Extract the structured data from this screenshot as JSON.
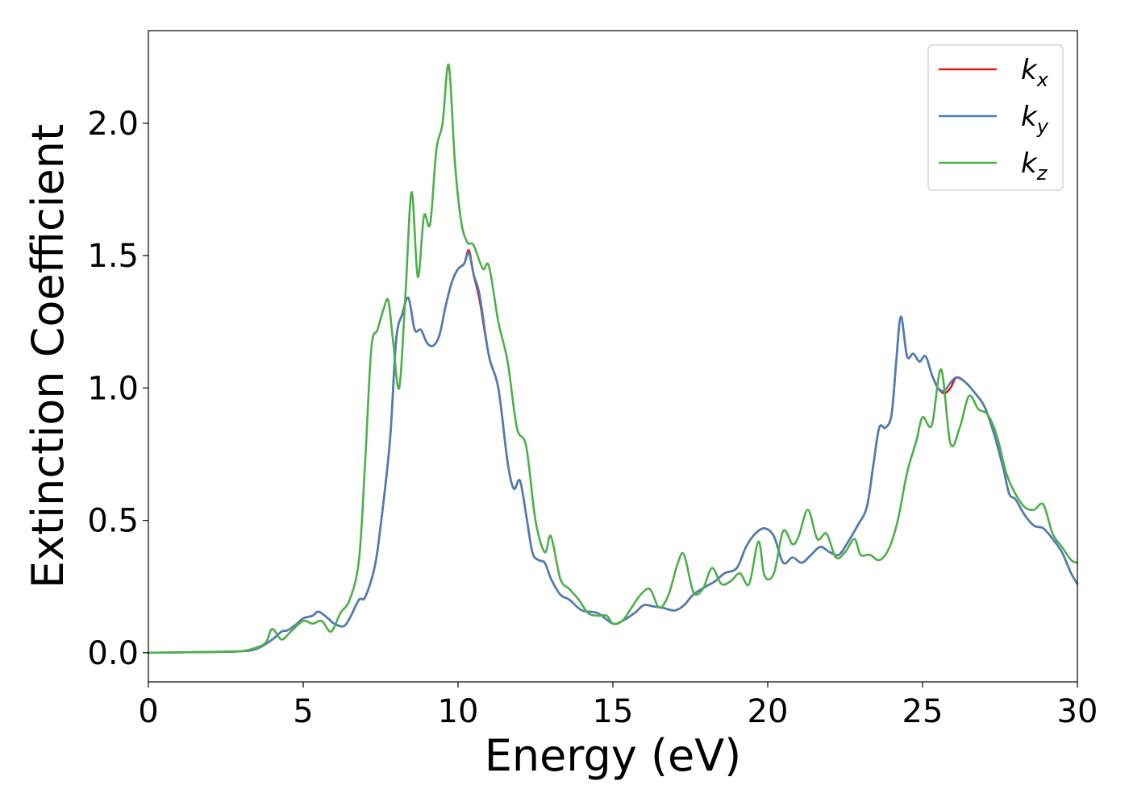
{
  "chart_data": {
    "type": "line",
    "xlabel": "Energy (eV)",
    "ylabel": "Extinction Coefficient",
    "xlim": [
      0,
      30
    ],
    "ylim": [
      -0.11,
      2.35
    ],
    "x_ticks": [
      0,
      5,
      10,
      15,
      20,
      25,
      30
    ],
    "x_tick_labels": [
      "0",
      "5",
      "10",
      "15",
      "20",
      "25",
      "30"
    ],
    "y_ticks": [
      0.0,
      0.5,
      1.0,
      1.5,
      2.0
    ],
    "y_tick_labels": [
      "0.0",
      "0.5",
      "1.0",
      "1.5",
      "2.0"
    ],
    "grid": false,
    "legend_position": "top-right",
    "series": [
      {
        "name": "k_x",
        "legend_base": "k",
        "legend_sub": "x",
        "color": "#e41a1c",
        "x": [
          0,
          2,
          3,
          3.5,
          4,
          4.3,
          4.5,
          4.8,
          5,
          5.3,
          5.5,
          5.8,
          6,
          6.3,
          6.5,
          6.8,
          7,
          7.3,
          7.5,
          7.8,
          8,
          8.2,
          8.4,
          8.6,
          8.8,
          9,
          9.2,
          9.4,
          9.6,
          9.8,
          10,
          10.2,
          10.35,
          10.5,
          10.7,
          11,
          11.3,
          11.6,
          11.8,
          12,
          12.2,
          12.4,
          12.6,
          12.8,
          13,
          13.3,
          13.6,
          14,
          14.5,
          15,
          15.3,
          15.7,
          16,
          16.3,
          16.6,
          17,
          17.3,
          17.6,
          18,
          18.3,
          18.6,
          19,
          19.3,
          19.6,
          19.9,
          20.2,
          20.5,
          20.8,
          21.1,
          21.4,
          21.7,
          22,
          22.3,
          22.6,
          22.9,
          23.2,
          23.4,
          23.6,
          23.8,
          24,
          24.15,
          24.3,
          24.5,
          24.7,
          24.9,
          25.1,
          25.3,
          25.5,
          25.7,
          25.9,
          26.1,
          26.4,
          26.7,
          27,
          27.3,
          27.6,
          27.8,
          28,
          28.3,
          28.6,
          28.9,
          29.2,
          29.5,
          29.8,
          30
        ],
        "y": [
          0,
          0.003,
          0.006,
          0.015,
          0.05,
          0.08,
          0.085,
          0.11,
          0.13,
          0.14,
          0.155,
          0.13,
          0.11,
          0.1,
          0.13,
          0.2,
          0.21,
          0.32,
          0.48,
          0.8,
          1.18,
          1.28,
          1.34,
          1.22,
          1.22,
          1.17,
          1.16,
          1.2,
          1.31,
          1.4,
          1.45,
          1.47,
          1.52,
          1.43,
          1.33,
          1.12,
          1.0,
          0.72,
          0.62,
          0.65,
          0.52,
          0.38,
          0.35,
          0.34,
          0.28,
          0.22,
          0.2,
          0.16,
          0.15,
          0.11,
          0.12,
          0.15,
          0.18,
          0.175,
          0.17,
          0.16,
          0.18,
          0.22,
          0.25,
          0.27,
          0.3,
          0.32,
          0.4,
          0.45,
          0.47,
          0.44,
          0.34,
          0.36,
          0.34,
          0.37,
          0.4,
          0.38,
          0.37,
          0.42,
          0.48,
          0.55,
          0.7,
          0.85,
          0.85,
          0.9,
          1.1,
          1.27,
          1.12,
          1.13,
          1.1,
          1.12,
          1.05,
          1.0,
          0.98,
          1.0,
          1.04,
          1.02,
          0.98,
          0.93,
          0.83,
          0.7,
          0.6,
          0.58,
          0.52,
          0.48,
          0.47,
          0.43,
          0.38,
          0.3,
          0.26
        ]
      },
      {
        "name": "k_y",
        "legend_base": "k",
        "legend_sub": "y",
        "color": "#4a7fb5",
        "x": [
          0,
          2,
          3,
          3.5,
          4,
          4.3,
          4.5,
          4.8,
          5,
          5.3,
          5.5,
          5.8,
          6,
          6.3,
          6.5,
          6.8,
          7,
          7.3,
          7.5,
          7.8,
          8,
          8.2,
          8.4,
          8.6,
          8.8,
          9,
          9.2,
          9.4,
          9.6,
          9.8,
          10,
          10.2,
          10.35,
          10.5,
          10.7,
          11,
          11.3,
          11.6,
          11.8,
          12,
          12.2,
          12.4,
          12.6,
          12.8,
          13,
          13.3,
          13.6,
          14,
          14.5,
          15,
          15.3,
          15.7,
          16,
          16.3,
          16.6,
          17,
          17.3,
          17.6,
          18,
          18.3,
          18.6,
          19,
          19.3,
          19.6,
          19.9,
          20.2,
          20.5,
          20.8,
          21.1,
          21.4,
          21.7,
          22,
          22.3,
          22.6,
          22.9,
          23.2,
          23.4,
          23.6,
          23.8,
          24,
          24.15,
          24.3,
          24.5,
          24.7,
          24.9,
          25.1,
          25.3,
          25.5,
          25.7,
          25.9,
          26.1,
          26.4,
          26.7,
          27,
          27.3,
          27.6,
          27.8,
          28,
          28.3,
          28.6,
          28.9,
          29.2,
          29.5,
          29.8,
          30
        ],
        "y": [
          0,
          0.003,
          0.006,
          0.015,
          0.05,
          0.08,
          0.085,
          0.11,
          0.13,
          0.14,
          0.155,
          0.13,
          0.11,
          0.1,
          0.13,
          0.2,
          0.21,
          0.32,
          0.48,
          0.8,
          1.18,
          1.28,
          1.34,
          1.22,
          1.22,
          1.17,
          1.16,
          1.2,
          1.31,
          1.4,
          1.45,
          1.47,
          1.51,
          1.43,
          1.35,
          1.12,
          1.0,
          0.72,
          0.62,
          0.65,
          0.52,
          0.38,
          0.35,
          0.34,
          0.28,
          0.22,
          0.2,
          0.16,
          0.15,
          0.11,
          0.12,
          0.15,
          0.18,
          0.175,
          0.17,
          0.16,
          0.18,
          0.22,
          0.25,
          0.27,
          0.3,
          0.32,
          0.4,
          0.45,
          0.47,
          0.44,
          0.34,
          0.36,
          0.34,
          0.37,
          0.4,
          0.38,
          0.37,
          0.42,
          0.48,
          0.55,
          0.7,
          0.85,
          0.85,
          0.9,
          1.1,
          1.27,
          1.12,
          1.13,
          1.1,
          1.12,
          1.05,
          1.0,
          0.99,
          1.02,
          1.04,
          1.02,
          0.98,
          0.93,
          0.83,
          0.7,
          0.6,
          0.58,
          0.52,
          0.48,
          0.47,
          0.43,
          0.38,
          0.3,
          0.26
        ]
      },
      {
        "name": "k_z",
        "legend_base": "k",
        "legend_sub": "z",
        "color": "#4daf4a",
        "x": [
          0,
          2,
          3,
          3.5,
          3.8,
          4.0,
          4.3,
          4.6,
          5,
          5.3,
          5.6,
          5.9,
          6.2,
          6.5,
          6.8,
          7.0,
          7.2,
          7.4,
          7.6,
          7.75,
          7.9,
          8.1,
          8.3,
          8.5,
          8.7,
          8.9,
          9.1,
          9.3,
          9.5,
          9.7,
          9.9,
          10.1,
          10.3,
          10.5,
          10.8,
          11.0,
          11.3,
          11.6,
          11.9,
          12.2,
          12.5,
          12.8,
          13.0,
          13.3,
          13.6,
          13.9,
          14.2,
          14.5,
          14.8,
          15.0,
          15.3,
          15.6,
          15.9,
          16.2,
          16.5,
          16.8,
          17.1,
          17.3,
          17.6,
          17.9,
          18.2,
          18.5,
          18.8,
          19.1,
          19.4,
          19.7,
          19.9,
          20.2,
          20.5,
          20.8,
          21.0,
          21.3,
          21.6,
          21.9,
          22.2,
          22.5,
          22.8,
          23.0,
          23.3,
          23.6,
          23.9,
          24.2,
          24.5,
          24.8,
          25.0,
          25.3,
          25.6,
          25.9,
          26.2,
          26.5,
          26.8,
          27.1,
          27.4,
          27.7,
          28.0,
          28.3,
          28.6,
          28.9,
          29.2,
          29.5,
          29.8,
          30
        ],
        "y": [
          0,
          0.003,
          0.006,
          0.02,
          0.04,
          0.09,
          0.05,
          0.08,
          0.12,
          0.11,
          0.12,
          0.08,
          0.15,
          0.2,
          0.35,
          0.72,
          1.15,
          1.22,
          1.3,
          1.33,
          1.18,
          1.0,
          1.35,
          1.74,
          1.42,
          1.65,
          1.62,
          1.9,
          2.0,
          2.22,
          1.85,
          1.63,
          1.55,
          1.54,
          1.45,
          1.46,
          1.25,
          1.1,
          0.85,
          0.78,
          0.5,
          0.38,
          0.44,
          0.28,
          0.24,
          0.2,
          0.15,
          0.14,
          0.14,
          0.11,
          0.12,
          0.17,
          0.22,
          0.24,
          0.17,
          0.22,
          0.34,
          0.37,
          0.23,
          0.24,
          0.32,
          0.26,
          0.27,
          0.3,
          0.26,
          0.42,
          0.29,
          0.3,
          0.46,
          0.41,
          0.44,
          0.54,
          0.43,
          0.45,
          0.36,
          0.38,
          0.43,
          0.37,
          0.37,
          0.35,
          0.39,
          0.5,
          0.68,
          0.8,
          0.89,
          0.86,
          1.07,
          0.79,
          0.85,
          0.97,
          0.92,
          0.9,
          0.82,
          0.68,
          0.6,
          0.55,
          0.54,
          0.56,
          0.45,
          0.4,
          0.35,
          0.34
        ]
      }
    ]
  }
}
